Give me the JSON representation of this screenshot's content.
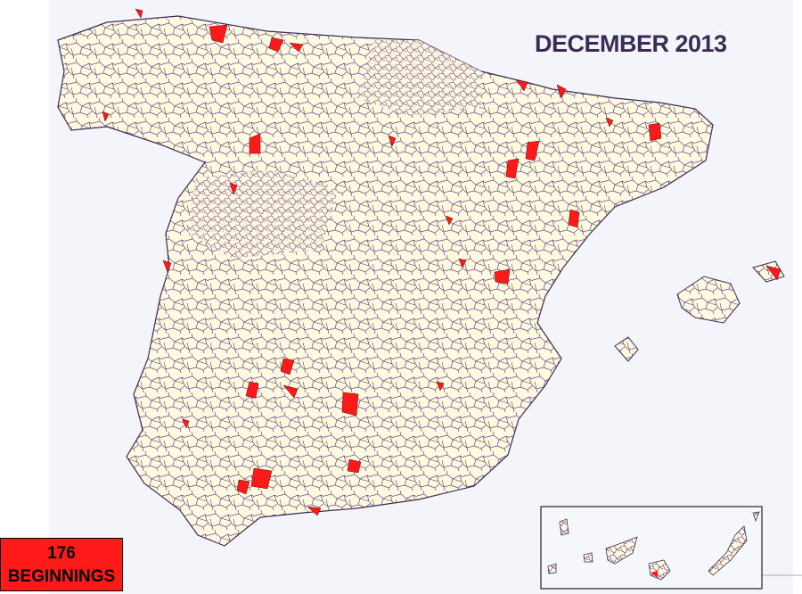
{
  "title": "DECEMBER 2013",
  "counter": {
    "value": "176",
    "label": "BEGINNINGS"
  }
}
